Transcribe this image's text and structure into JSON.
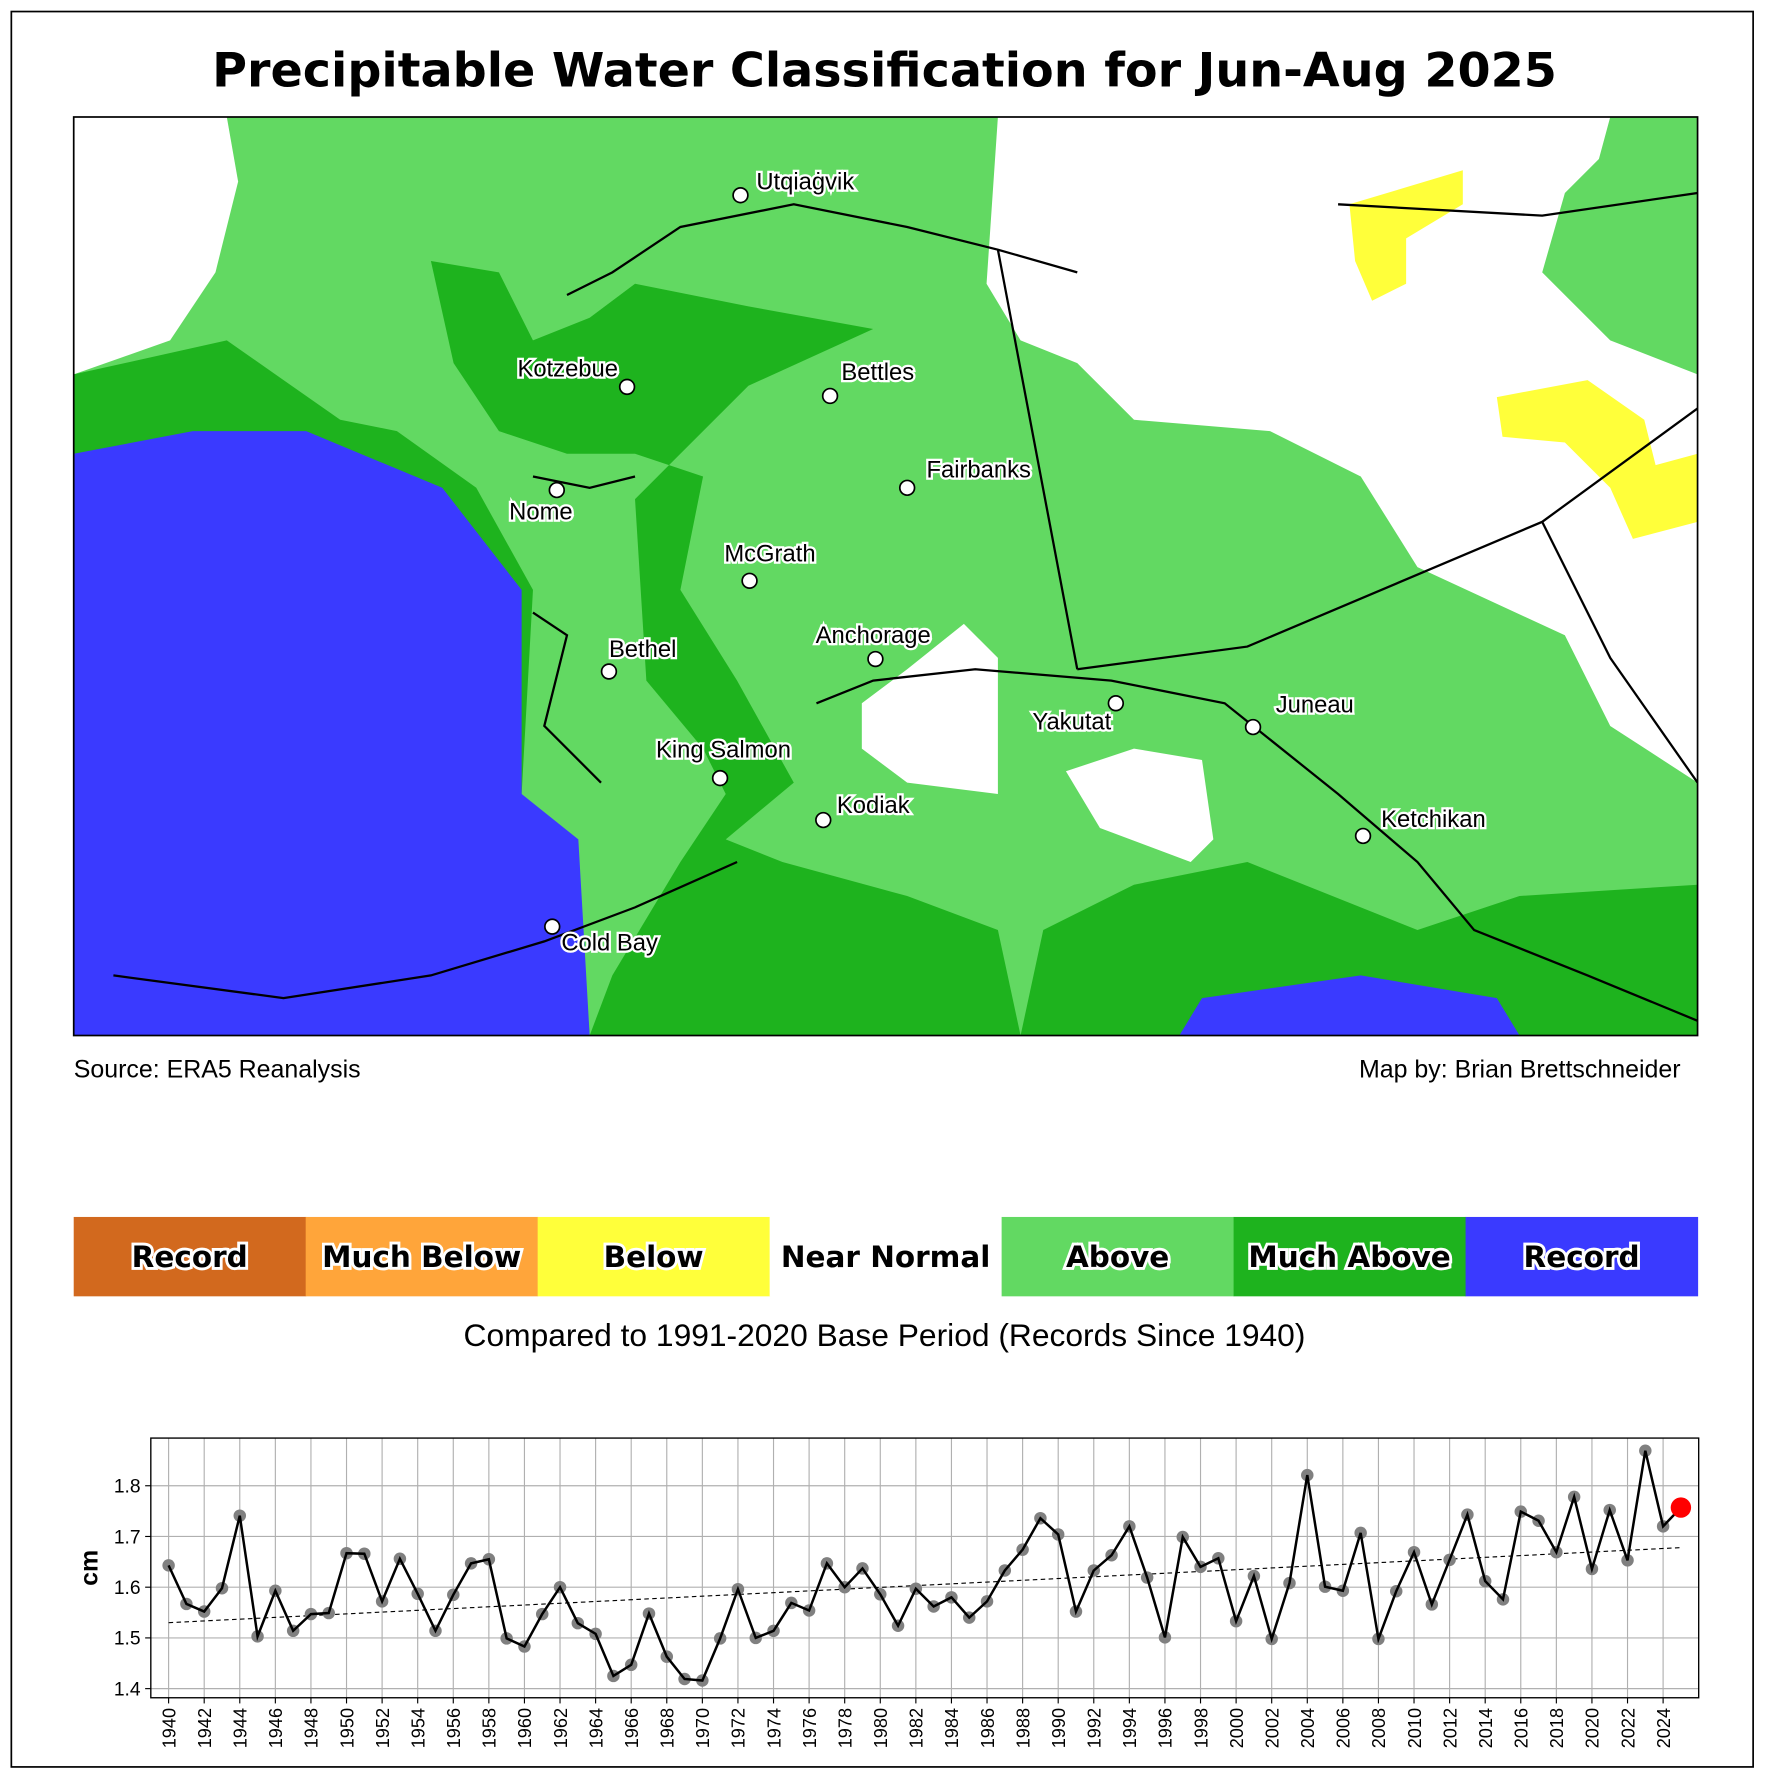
{
  "title": "Precipitable Water Classification for Jun-Aug 2025",
  "map": {
    "cities": [
      "Utqiaġvik",
      "Kotzebue",
      "Bettles",
      "Fairbanks",
      "Nome",
      "McGrath",
      "Anchorage",
      "Bethel",
      "Yakutat",
      "Juneau",
      "King Salmon",
      "Kodiak",
      "Ketchikan",
      "Cold Bay"
    ]
  },
  "source": "Source: ERA5 Reanalysis",
  "credit": "Map by: Brian Brettschneider",
  "legend": {
    "items": [
      {
        "label": "Record",
        "color": "#d2691e"
      },
      {
        "label": "Much Below",
        "color": "#ffa53a"
      },
      {
        "label": "Below",
        "color": "#ffff3a"
      },
      {
        "label": "Near Normal",
        "color": "#ffffff"
      },
      {
        "label": "Above",
        "color": "#62d962"
      },
      {
        "label": "Much Above",
        "color": "#1eb31e"
      },
      {
        "label": "Record",
        "color": "#3a3aff"
      }
    ],
    "note": "Compared to 1991-2020 Base Period   (Records Since 1940)"
  },
  "chart_data": {
    "type": "line",
    "ylabel": "cm",
    "x": [
      1940,
      1941,
      1942,
      1943,
      1944,
      1945,
      1946,
      1947,
      1948,
      1949,
      1950,
      1951,
      1952,
      1953,
      1954,
      1955,
      1956,
      1957,
      1958,
      1959,
      1960,
      1961,
      1962,
      1963,
      1964,
      1965,
      1966,
      1967,
      1968,
      1969,
      1970,
      1971,
      1972,
      1973,
      1974,
      1975,
      1976,
      1977,
      1978,
      1979,
      1980,
      1981,
      1982,
      1983,
      1984,
      1985,
      1986,
      1987,
      1988,
      1989,
      1990,
      1991,
      1992,
      1993,
      1994,
      1995,
      1996,
      1997,
      1998,
      1999,
      2000,
      2001,
      2002,
      2003,
      2004,
      2005,
      2006,
      2007,
      2008,
      2009,
      2010,
      2011,
      2012,
      2013,
      2014,
      2015,
      2016,
      2017,
      2018,
      2019,
      2020,
      2021,
      2022,
      2023,
      2024,
      2025
    ],
    "values": [
      1.643,
      1.567,
      1.552,
      1.598,
      1.741,
      1.503,
      1.593,
      1.514,
      1.547,
      1.549,
      1.667,
      1.666,
      1.572,
      1.656,
      1.587,
      1.514,
      1.585,
      1.647,
      1.655,
      1.499,
      1.483,
      1.547,
      1.6,
      1.529,
      1.508,
      1.425,
      1.447,
      1.548,
      1.463,
      1.419,
      1.416,
      1.499,
      1.596,
      1.5,
      1.514,
      1.569,
      1.554,
      1.647,
      1.6,
      1.637,
      1.586,
      1.524,
      1.597,
      1.562,
      1.58,
      1.54,
      1.572,
      1.633,
      1.674,
      1.736,
      1.704,
      1.552,
      1.633,
      1.663,
      1.72,
      1.619,
      1.501,
      1.699,
      1.64,
      1.657,
      1.533,
      1.622,
      1.498,
      1.608,
      1.821,
      1.601,
      1.593,
      1.707,
      1.498,
      1.592,
      1.669,
      1.566,
      1.654,
      1.743,
      1.612,
      1.576,
      1.749,
      1.731,
      1.669,
      1.778,
      1.636,
      1.752,
      1.653,
      1.869,
      1.72,
      1.757
    ],
    "color": "#000000",
    "marker_color": "#808080",
    "highlight_color": "#ff0000",
    "trend": {
      "x": [
        1940,
        2025
      ],
      "values": [
        1.53,
        1.678
      ]
    },
    "xlim": [
      1939,
      2026
    ],
    "ylim": [
      1.382,
      1.894
    ],
    "xticks": [
      1940,
      1942,
      1944,
      1946,
      1948,
      1950,
      1952,
      1954,
      1956,
      1958,
      1960,
      1962,
      1964,
      1966,
      1968,
      1970,
      1972,
      1974,
      1976,
      1978,
      1980,
      1982,
      1984,
      1986,
      1988,
      1990,
      1992,
      1994,
      1996,
      1998,
      2000,
      2002,
      2004,
      2006,
      2008,
      2010,
      2012,
      2014,
      2016,
      2018,
      2020,
      2022,
      2024
    ],
    "yticks": [
      1.4,
      1.5,
      1.6,
      1.7,
      1.8
    ],
    "grid": true
  }
}
